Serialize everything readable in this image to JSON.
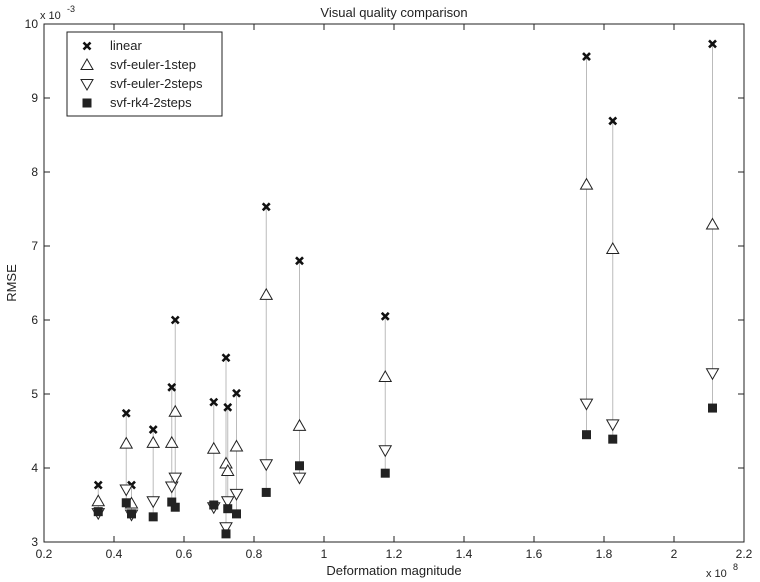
{
  "chart_data": {
    "type": "scatter",
    "title": "Visual quality comparison",
    "xlabel": "Deformation magnitude",
    "ylabel": "RMSE",
    "x_exponent_label": "x 10",
    "x_exponent": "8",
    "y_exponent_label": "x 10",
    "y_exponent": "-3",
    "xlim": [
      0.2,
      2.2
    ],
    "ylim": [
      3,
      10
    ],
    "xticks": [
      0.2,
      0.4,
      0.6,
      0.8,
      1,
      1.2,
      1.4,
      1.6,
      1.8,
      2,
      2.2
    ],
    "xtick_labels": [
      "0.2",
      "0.4",
      "0.6",
      "0.8",
      "1",
      "1.2",
      "1.4",
      "1.6",
      "1.8",
      "2",
      "2.2"
    ],
    "yticks": [
      3,
      4,
      5,
      6,
      7,
      8,
      9,
      10
    ],
    "ytick_labels": [
      "3",
      "4",
      "5",
      "6",
      "7",
      "8",
      "9",
      "10"
    ],
    "grid": false,
    "legend_position": "top-left",
    "x": [
      0.355,
      0.435,
      0.45,
      0.512,
      0.565,
      0.575,
      0.685,
      0.72,
      0.725,
      0.75,
      0.835,
      0.93,
      1.175,
      1.75,
      1.825,
      2.11
    ],
    "series": [
      {
        "name": "linear",
        "marker": "x",
        "values": [
          3.77,
          4.74,
          3.77,
          4.52,
          5.09,
          6.0,
          4.89,
          5.49,
          4.82,
          5.01,
          7.53,
          6.8,
          6.05,
          9.56,
          8.69,
          9.73
        ]
      },
      {
        "name": "svf-euler-1step",
        "marker": "triangle-up",
        "values": [
          3.55,
          4.33,
          3.52,
          4.34,
          4.34,
          4.76,
          4.26,
          4.06,
          3.96,
          4.29,
          6.34,
          4.57,
          5.23,
          7.83,
          6.96,
          7.29
        ]
      },
      {
        "name": "svf-euler-2steps",
        "marker": "triangle-down",
        "values": [
          3.39,
          3.71,
          3.37,
          3.55,
          3.75,
          3.87,
          3.47,
          3.2,
          3.55,
          3.65,
          4.05,
          3.87,
          4.24,
          4.87,
          4.59,
          5.28
        ]
      },
      {
        "name": "svf-rk4-2steps",
        "marker": "square",
        "values": [
          3.41,
          3.53,
          3.38,
          3.34,
          3.54,
          3.47,
          3.5,
          3.11,
          3.45,
          3.38,
          3.67,
          4.03,
          3.93,
          4.45,
          4.39,
          4.81
        ]
      }
    ]
  }
}
